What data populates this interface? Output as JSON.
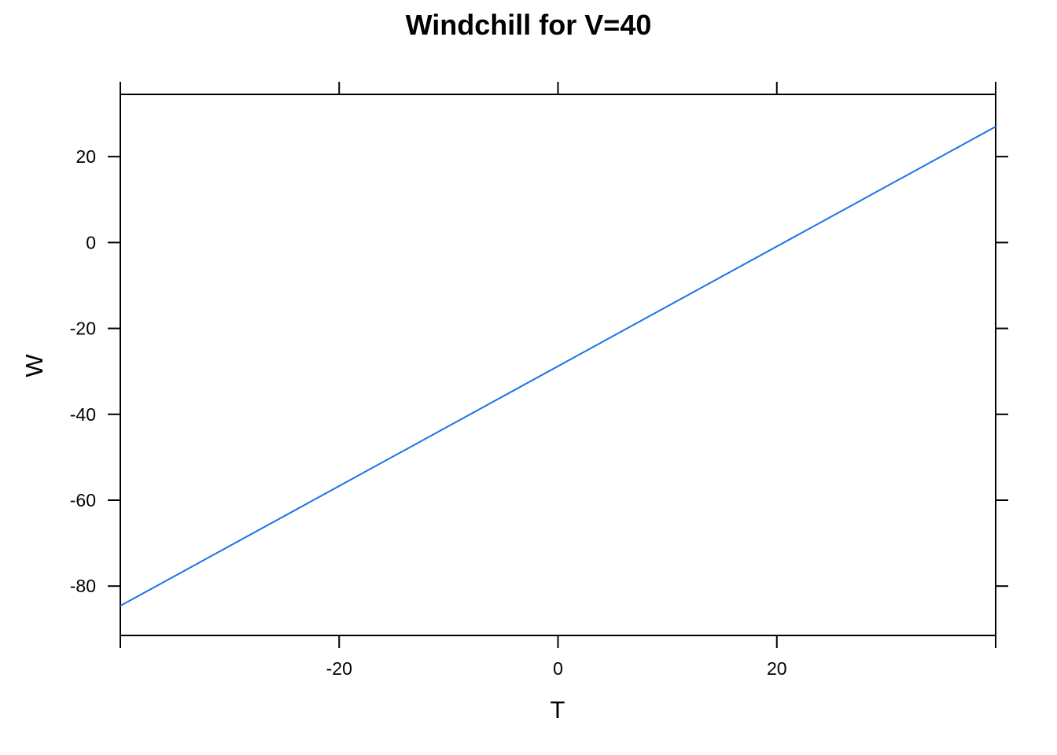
{
  "chart_data": {
    "type": "line",
    "title": "Windchill for V=40",
    "xlabel": "T",
    "ylabel": "W",
    "xlim": [
      -40,
      40
    ],
    "ylim": [
      -91.5,
      34.5
    ],
    "x_ticks": [
      -20,
      0,
      20
    ],
    "x_tick_labels": [
      "-20",
      "0",
      "20"
    ],
    "x_edge_ticks": [
      -40,
      -20,
      0,
      20,
      40
    ],
    "y_ticks": [
      -80,
      -60,
      -40,
      -20,
      0,
      20
    ],
    "y_tick_labels": [
      "-80",
      "-60",
      "-40",
      "-20",
      "0",
      "20"
    ],
    "grid": false,
    "series": [
      {
        "color": "#1a73e8",
        "x": [
          -40,
          40
        ],
        "y": [
          -84.6,
          27.0
        ]
      }
    ]
  }
}
